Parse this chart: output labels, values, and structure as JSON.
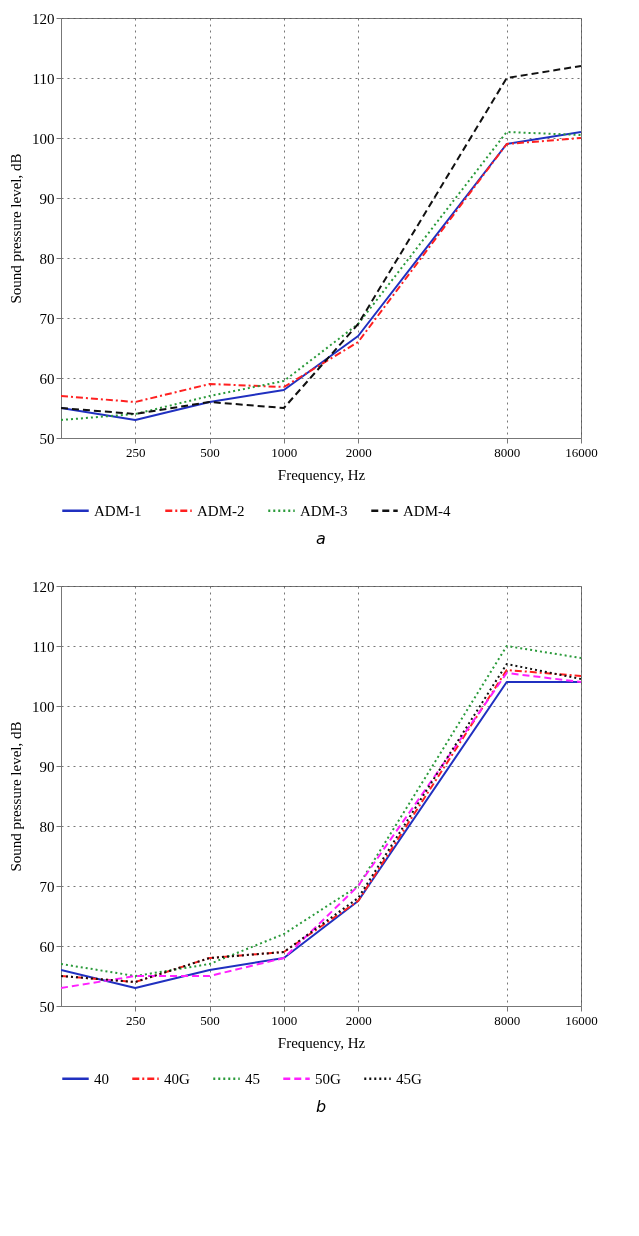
{
  "chart_data": [
    {
      "type": "line",
      "xlabel": "Frequency, Hz",
      "ylabel": "Sound pressure level, dB",
      "annotations": [
        "a"
      ],
      "log": "x",
      "x": [
        125,
        250,
        500,
        1000,
        2000,
        8000,
        16000
      ],
      "xlim": [
        125,
        16000
      ],
      "xticks": [
        250,
        500,
        1000,
        2000,
        8000,
        16000
      ],
      "ylim": [
        50,
        120
      ],
      "yticks": [
        50,
        60,
        70,
        80,
        90,
        100,
        110,
        120
      ],
      "grid": true,
      "legend": "bottom",
      "marker": "none",
      "series": [
        {
          "name": "ADM-1",
          "color": "#2030c0",
          "line_style": "solid",
          "values": [
            55,
            53,
            56,
            58,
            67,
            99,
            101
          ]
        },
        {
          "name": "ADM-2",
          "color": "#ff2020",
          "line_style": "dashdot",
          "values": [
            57,
            56,
            59,
            58.5,
            66,
            99,
            100
          ]
        },
        {
          "name": "ADM-3",
          "color": "#2a9a3a",
          "line_style": "dotted",
          "values": [
            53,
            54,
            57,
            59.5,
            69,
            101,
            100.5
          ]
        },
        {
          "name": "ADM-4",
          "color": "#111111",
          "line_style": "dashed",
          "values": [
            55,
            54,
            56,
            55,
            69,
            110,
            112
          ]
        }
      ]
    },
    {
      "type": "line",
      "xlabel": "Frequency, Hz",
      "ylabel": "Sound pressure level, dB",
      "annotations": [
        "b"
      ],
      "log": "x",
      "x": [
        125,
        250,
        500,
        1000,
        2000,
        8000,
        16000
      ],
      "xlim": [
        125,
        16000
      ],
      "xticks": [
        250,
        500,
        1000,
        2000,
        8000,
        16000
      ],
      "ylim": [
        50,
        120
      ],
      "yticks": [
        50,
        60,
        70,
        80,
        90,
        100,
        110,
        120
      ],
      "grid": true,
      "legend": "bottom",
      "marker": "none",
      "series": [
        {
          "name": "40",
          "color": "#2030c0",
          "line_style": "solid",
          "values": [
            56,
            53,
            56,
            58,
            67.5,
            104,
            104
          ]
        },
        {
          "name": "40G",
          "color": "#ff2020",
          "line_style": "dashdot",
          "values": [
            55,
            54,
            58,
            59,
            67.5,
            106,
            105
          ]
        },
        {
          "name": "45",
          "color": "#2a9a3a",
          "line_style": "dotted",
          "values": [
            57,
            55,
            57,
            62,
            70,
            110,
            108
          ]
        },
        {
          "name": "50G",
          "color": "#ff20ff",
          "line_style": "dashed",
          "values": [
            53,
            55,
            55,
            58,
            70,
            105.5,
            104
          ]
        },
        {
          "name": "45G",
          "color": "#111111",
          "line_style": "dotted",
          "values": [
            55,
            54,
            58,
            59,
            68,
            107,
            104.5
          ]
        }
      ]
    }
  ]
}
